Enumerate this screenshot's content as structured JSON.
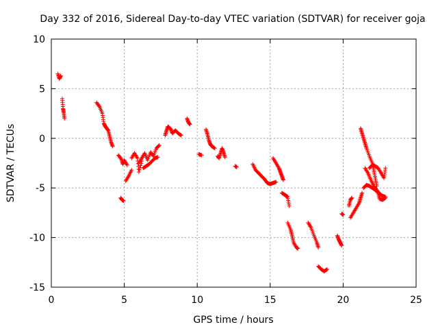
{
  "chart_data": {
    "type": "scatter",
    "title": "Day 332 of 2016, Sidereal Day-to-day VTEC variation (SDTVAR) for receiver goja",
    "xlabel": "GPS time / hours",
    "ylabel": "SDTVAR / TECUs",
    "xlim": [
      0,
      25
    ],
    "ylim": [
      -15,
      10
    ],
    "xticks": [
      "0",
      "5",
      "10",
      "15",
      "20",
      "25"
    ],
    "yticks": [
      "10",
      "5",
      "0",
      "-5",
      "-10",
      "-15"
    ],
    "xtick_values": [
      0,
      5,
      10,
      15,
      20,
      25
    ],
    "ytick_values": [
      10,
      5,
      0,
      -5,
      -10,
      -15
    ],
    "grid": true,
    "marker": "+",
    "color": "#ff0000",
    "segments": [
      [
        [
          0.45,
          6.5
        ],
        [
          0.55,
          6.0
        ],
        [
          0.65,
          6.3
        ]
      ],
      [
        [
          0.75,
          4.0
        ],
        [
          0.8,
          3.0
        ],
        [
          0.85,
          2.6
        ],
        [
          0.9,
          2.0
        ]
      ],
      [
        [
          3.1,
          3.6
        ],
        [
          3.3,
          3.2
        ],
        [
          3.5,
          2.5
        ],
        [
          3.6,
          1.5
        ],
        [
          3.7,
          1.2
        ],
        [
          3.8,
          1.0
        ],
        [
          3.9,
          0.8
        ],
        [
          4.0,
          0.2
        ],
        [
          4.1,
          -0.4
        ],
        [
          4.2,
          -0.8
        ]
      ],
      [
        [
          4.6,
          -1.7
        ],
        [
          4.8,
          -2.1
        ],
        [
          4.9,
          -2.6
        ],
        [
          5.0,
          -2.2
        ],
        [
          5.2,
          -2.7
        ]
      ],
      [
        [
          4.75,
          -6.0
        ],
        [
          4.85,
          -6.2
        ],
        [
          4.95,
          -6.3
        ]
      ],
      [
        [
          5.1,
          -4.3
        ],
        [
          5.3,
          -3.8
        ],
        [
          5.5,
          -3.2
        ]
      ],
      [
        [
          5.5,
          -2.0
        ],
        [
          5.7,
          -1.5
        ],
        [
          5.9,
          -2.0
        ],
        [
          6.0,
          -3.4
        ],
        [
          6.2,
          -2.3
        ]
      ],
      [
        [
          6.0,
          -2.5
        ],
        [
          6.2,
          -2.0
        ],
        [
          6.4,
          -1.5
        ],
        [
          6.6,
          -2.2
        ],
        [
          6.8,
          -1.4
        ],
        [
          7.0,
          -1.8
        ],
        [
          7.2,
          -1.0
        ],
        [
          7.4,
          -0.7
        ]
      ],
      [
        [
          6.3,
          -3.0
        ],
        [
          6.5,
          -2.8
        ],
        [
          6.7,
          -2.6
        ],
        [
          6.9,
          -2.3
        ],
        [
          7.1,
          -2.0
        ],
        [
          7.3,
          -1.9
        ]
      ],
      [
        [
          7.8,
          0.3
        ],
        [
          7.9,
          0.8
        ],
        [
          8.0,
          1.2
        ],
        [
          8.2,
          0.9
        ],
        [
          8.3,
          0.5
        ],
        [
          8.5,
          0.8
        ],
        [
          8.7,
          0.5
        ],
        [
          8.9,
          0.3
        ]
      ],
      [
        [
          9.3,
          2.0
        ],
        [
          9.4,
          1.6
        ],
        [
          9.5,
          1.4
        ]
      ],
      [
        [
          10.1,
          -1.6
        ],
        [
          10.3,
          -1.7
        ]
      ],
      [
        [
          10.6,
          0.9
        ],
        [
          10.7,
          0.4
        ],
        [
          10.8,
          -0.2
        ],
        [
          10.9,
          -0.6
        ],
        [
          11.0,
          -0.8
        ],
        [
          11.2,
          -1.0
        ]
      ],
      [
        [
          11.4,
          -1.8
        ],
        [
          11.5,
          -2.0
        ],
        [
          11.6,
          -1.5
        ],
        [
          11.7,
          -1.0
        ],
        [
          11.8,
          -1.4
        ],
        [
          11.9,
          -1.9
        ]
      ],
      [
        [
          12.6,
          -2.8
        ],
        [
          12.7,
          -2.9
        ]
      ],
      [
        [
          13.8,
          -2.6
        ],
        [
          14.0,
          -3.2
        ],
        [
          14.2,
          -3.5
        ],
        [
          14.4,
          -3.8
        ],
        [
          14.6,
          -4.1
        ],
        [
          14.8,
          -4.5
        ],
        [
          15.0,
          -4.6
        ],
        [
          15.2,
          -4.5
        ],
        [
          15.4,
          -4.4
        ]
      ],
      [
        [
          15.2,
          -2.0
        ],
        [
          15.4,
          -2.5
        ],
        [
          15.6,
          -3.0
        ],
        [
          15.7,
          -3.4
        ],
        [
          15.8,
          -3.8
        ],
        [
          15.9,
          -4.2
        ]
      ],
      [
        [
          15.8,
          -5.5
        ],
        [
          16.0,
          -5.7
        ],
        [
          16.1,
          -5.8
        ],
        [
          16.2,
          -5.9
        ],
        [
          16.3,
          -6.8
        ]
      ],
      [
        [
          16.2,
          -8.5
        ],
        [
          16.4,
          -9.2
        ],
        [
          16.5,
          -9.8
        ],
        [
          16.6,
          -10.5
        ],
        [
          16.8,
          -11.0
        ],
        [
          16.9,
          -11.1
        ]
      ],
      [
        [
          17.6,
          -8.5
        ],
        [
          17.8,
          -9.0
        ],
        [
          18.0,
          -9.8
        ],
        [
          18.2,
          -10.5
        ],
        [
          18.3,
          -11.0
        ]
      ],
      [
        [
          18.3,
          -12.9
        ],
        [
          18.5,
          -13.2
        ],
        [
          18.7,
          -13.4
        ],
        [
          18.9,
          -13.2
        ]
      ],
      [
        [
          19.6,
          -9.8
        ],
        [
          19.7,
          -10.2
        ],
        [
          19.8,
          -10.5
        ],
        [
          19.9,
          -10.8
        ]
      ],
      [
        [
          19.9,
          -7.6
        ],
        [
          20.0,
          -7.7
        ]
      ],
      [
        [
          20.4,
          -6.8
        ],
        [
          20.5,
          -6.2
        ],
        [
          20.6,
          -6.0
        ]
      ],
      [
        [
          20.5,
          -8.0
        ],
        [
          20.7,
          -7.5
        ],
        [
          20.9,
          -7.0
        ],
        [
          21.1,
          -6.5
        ],
        [
          21.2,
          -6.0
        ],
        [
          21.3,
          -5.5
        ]
      ],
      [
        [
          21.2,
          1.0
        ],
        [
          21.3,
          0.5
        ],
        [
          21.4,
          0.0
        ],
        [
          21.5,
          -0.5
        ],
        [
          21.6,
          -1.0
        ],
        [
          21.8,
          -1.8
        ],
        [
          22.0,
          -2.5
        ],
        [
          22.1,
          -3.2
        ],
        [
          22.2,
          -4.0
        ],
        [
          22.3,
          -4.8
        ]
      ],
      [
        [
          21.5,
          -3.0
        ],
        [
          21.7,
          -3.5
        ],
        [
          21.9,
          -4.2
        ],
        [
          22.1,
          -4.8
        ],
        [
          22.3,
          -5.2
        ],
        [
          22.5,
          -5.6
        ],
        [
          22.7,
          -5.8
        ],
        [
          22.9,
          -5.9
        ]
      ],
      [
        [
          21.4,
          -5.0
        ],
        [
          21.6,
          -4.7
        ],
        [
          21.8,
          -4.8
        ],
        [
          22.0,
          -5.0
        ],
        [
          22.2,
          -5.2
        ],
        [
          22.4,
          -5.5
        ],
        [
          22.5,
          -6.1
        ],
        [
          22.7,
          -6.2
        ],
        [
          22.9,
          -6.0
        ]
      ],
      [
        [
          21.8,
          -3.0
        ],
        [
          22.0,
          -2.7
        ],
        [
          22.2,
          -2.8
        ],
        [
          22.4,
          -3.0
        ],
        [
          22.6,
          -3.5
        ],
        [
          22.8,
          -4.0
        ],
        [
          22.9,
          -3.0
        ]
      ]
    ]
  }
}
